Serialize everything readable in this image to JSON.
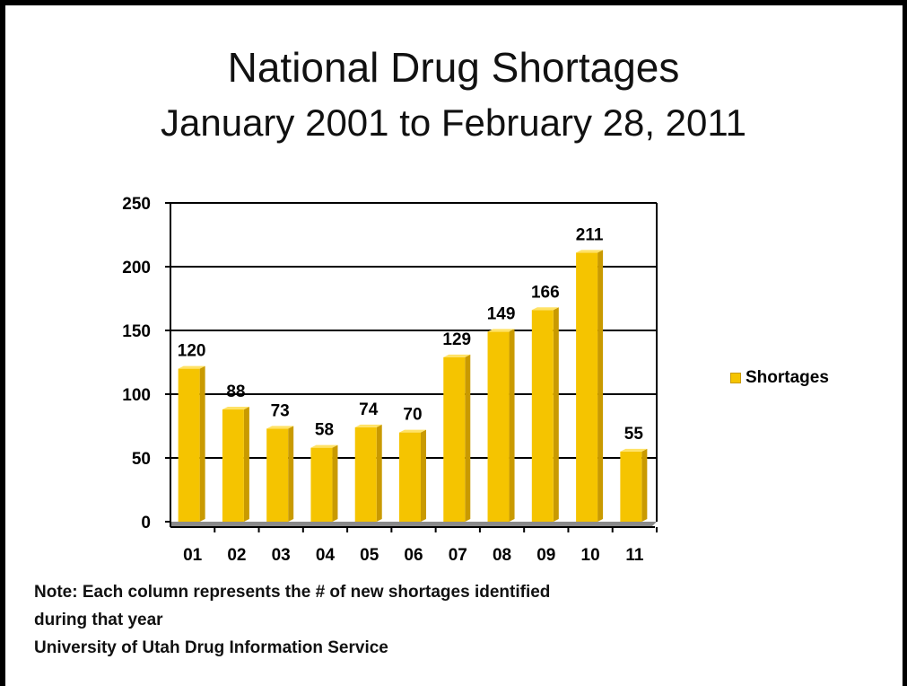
{
  "slide": {
    "title": "National Drug Shortages",
    "subtitle": "January 2001 to February 28, 2011",
    "note_line1": "Note: Each column represents the # of new shortages identified",
    "note_line2": "during that year",
    "source": "University of Utah Drug Information Service"
  },
  "chart_data": {
    "type": "bar",
    "title": "National Drug Shortages",
    "subtitle": "January 2001 to February 28, 2011",
    "categories": [
      "01",
      "02",
      "03",
      "04",
      "05",
      "06",
      "07",
      "08",
      "09",
      "10",
      "11"
    ],
    "series": [
      {
        "name": "Shortages",
        "values": [
          120,
          88,
          73,
          58,
          74,
          70,
          129,
          149,
          166,
          211,
          55
        ]
      }
    ],
    "ylim": [
      0,
      250
    ],
    "yticks": [
      0,
      50,
      100,
      150,
      200,
      250
    ],
    "grid": true,
    "legend_position": "right",
    "data_labels": true,
    "colors": {
      "bar": "#f5c400",
      "bar_side": "#c99a00",
      "bar_top": "#ffe266",
      "floor": "#8a8a8a"
    }
  }
}
